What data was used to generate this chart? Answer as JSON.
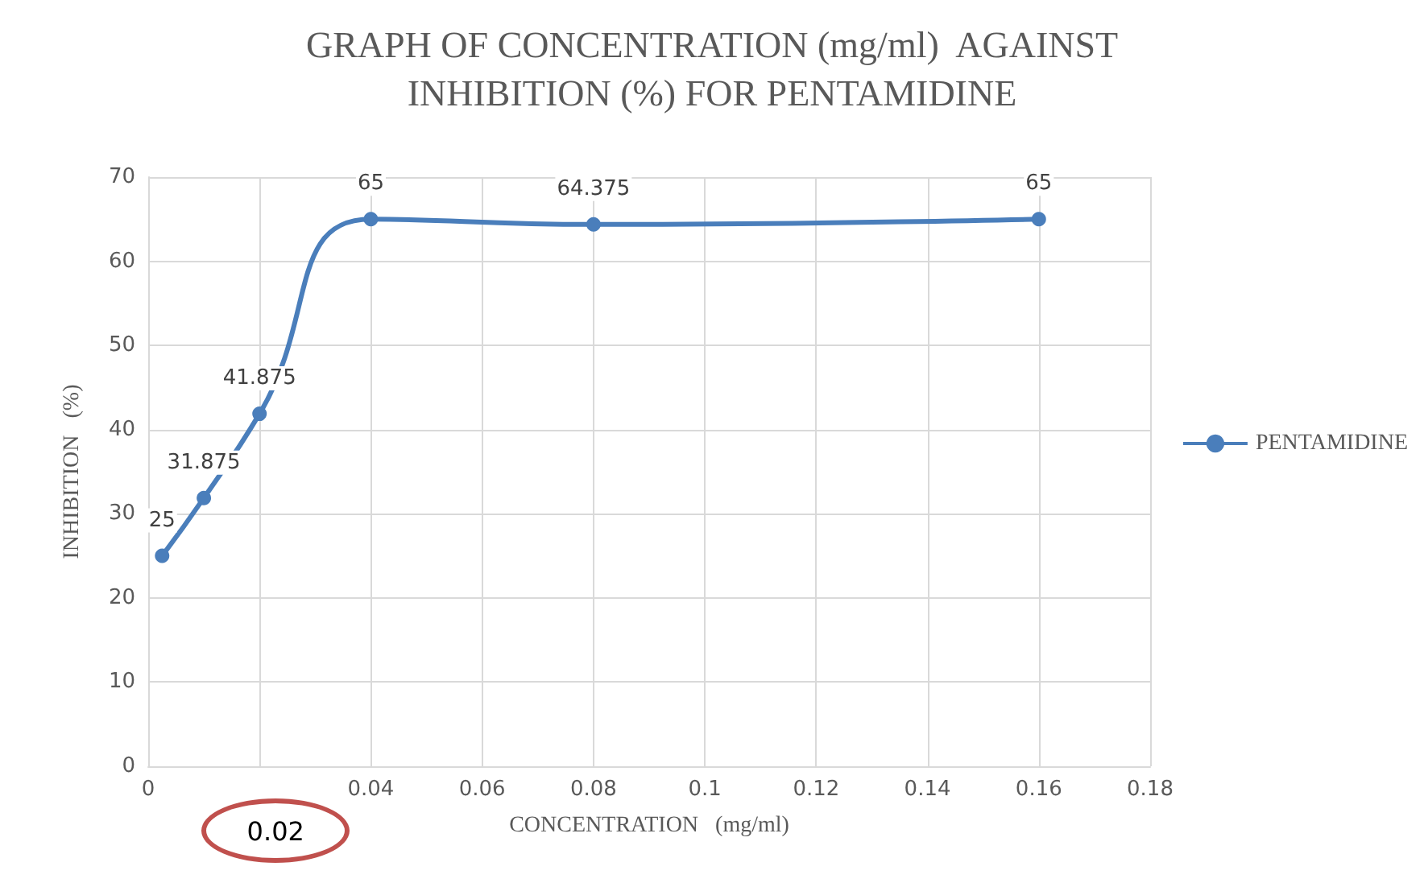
{
  "chart_data": {
    "type": "line",
    "title": "GRAPH OF CONCENTRATION (mg/ml)  AGAINST\nINHIBITION (%) FOR PENTAMIDINE",
    "xlabel": "CONCENTRATION   (mg/ml)",
    "ylabel": "INHIBITION   (%)",
    "x": [
      0.0025,
      0.01,
      0.02,
      0.04,
      0.08,
      0.16
    ],
    "series": [
      {
        "name": "PENTAMIDINE",
        "color": "#4a7ebb",
        "values": [
          25,
          31.875,
          41.875,
          65,
          64.375,
          65
        ]
      }
    ],
    "xlim": [
      0,
      0.18
    ],
    "xticks": [
      0,
      {
        "value": 0.02,
        "label": null
      },
      0.04,
      0.06,
      0.08,
      0.1,
      0.12,
      0.14,
      0.16,
      0.18
    ],
    "ylim": [
      0,
      70
    ],
    "yticks": [
      0,
      10,
      20,
      30,
      40,
      50,
      60,
      70
    ],
    "annotations": [
      "0.02"
    ],
    "grid": true,
    "legend": "right",
    "marker": "circle",
    "line_style": "solid",
    "data_labels": true
  }
}
